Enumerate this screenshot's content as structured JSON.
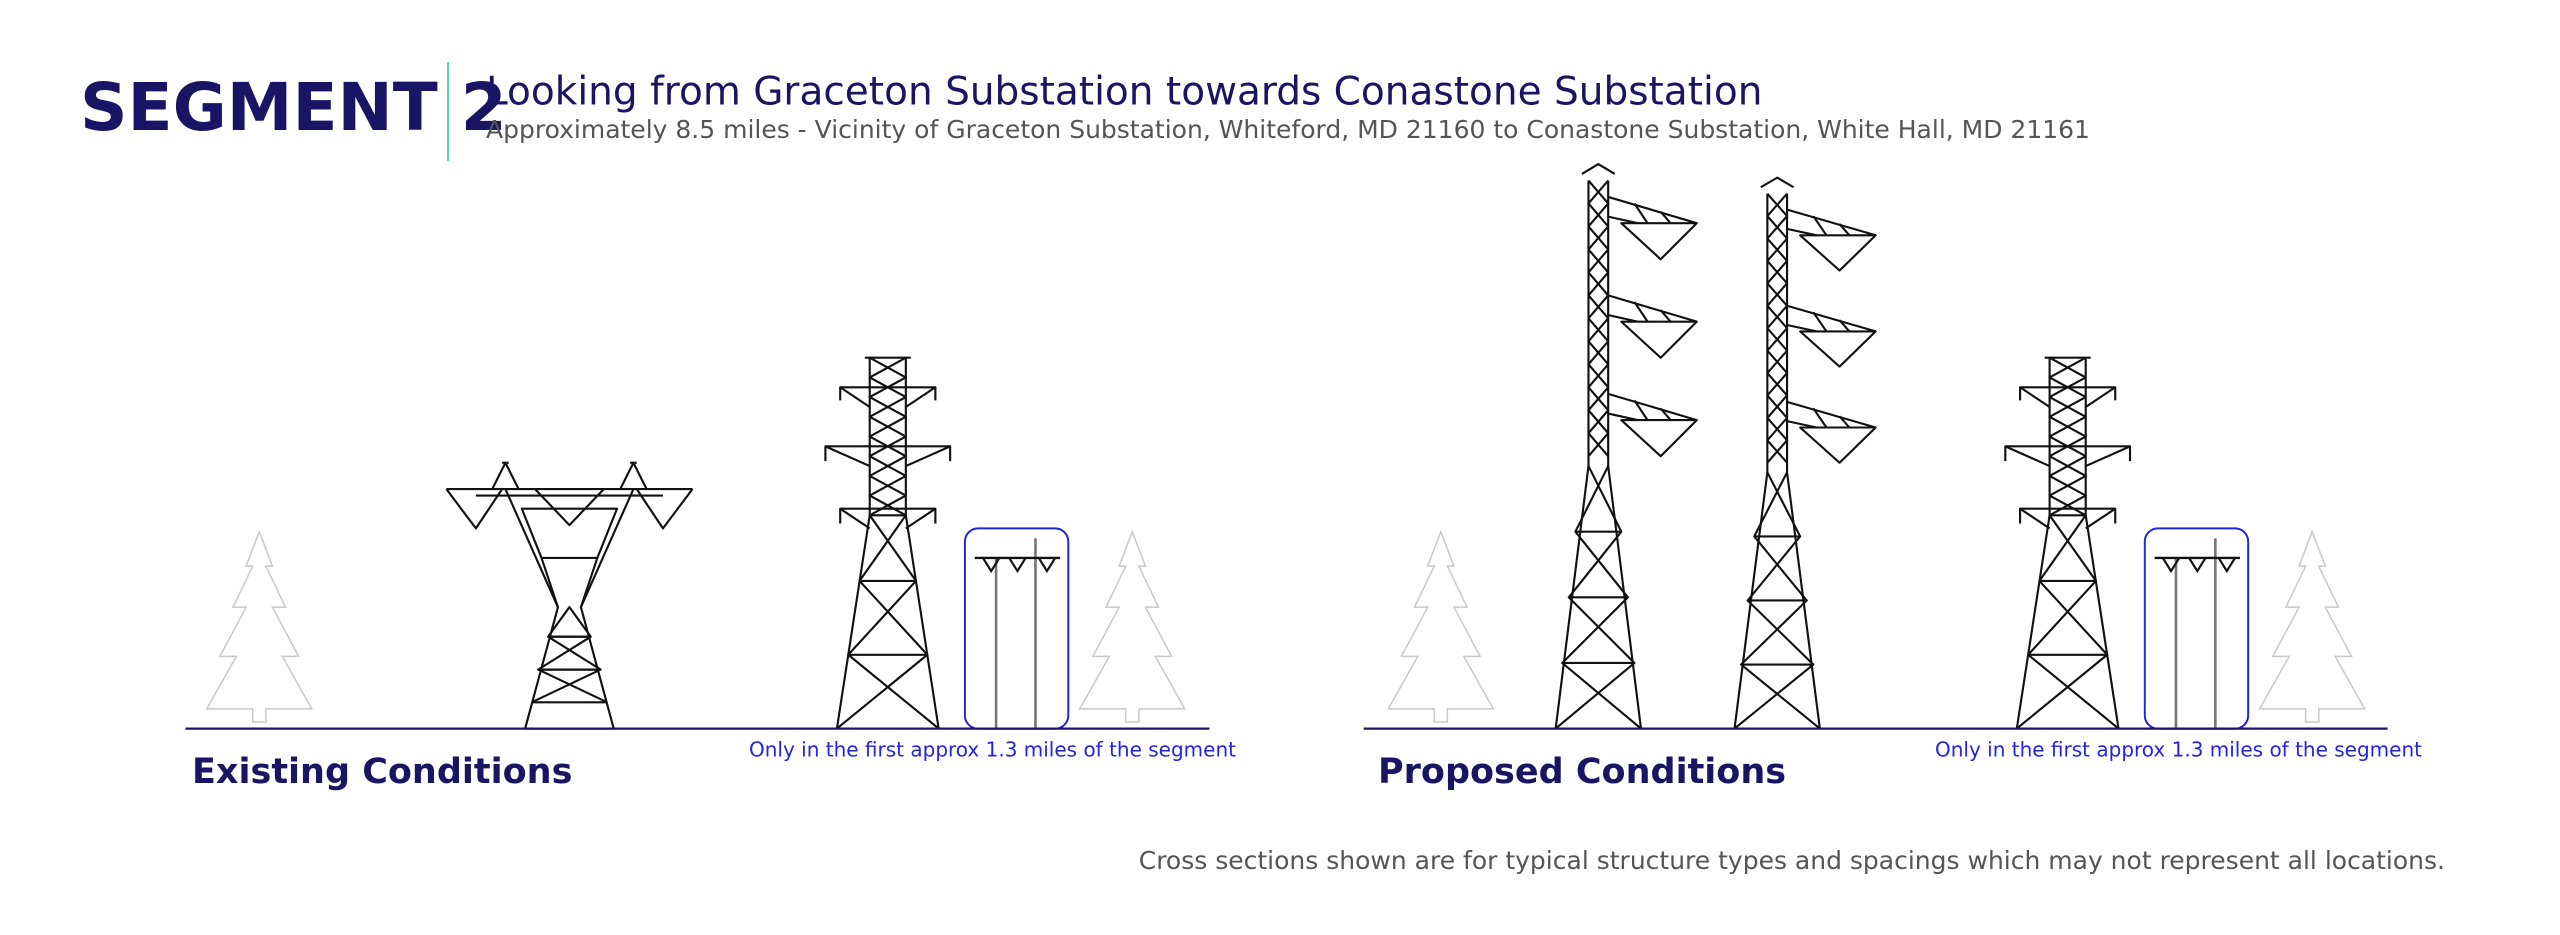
{
  "header": {
    "segment": "SEGMENT 2",
    "title": "Looking from Graceton Substation towards Conastone Substation",
    "subtitle": "Approximately 8.5 miles - Vicinity of Graceton Substation, Whiteford, MD 21160 to Conastone Substation, White Hall, MD 21161"
  },
  "panels": [
    {
      "label": "Existing Conditions",
      "note": "Only in the first approx 1.3 miles of the segment"
    },
    {
      "label": "Proposed Conditions",
      "note": "Only in the first approx 1.3 miles of the segment"
    }
  ],
  "footer": "Cross sections shown are for typical structure types and spacings which may not represent all locations."
}
